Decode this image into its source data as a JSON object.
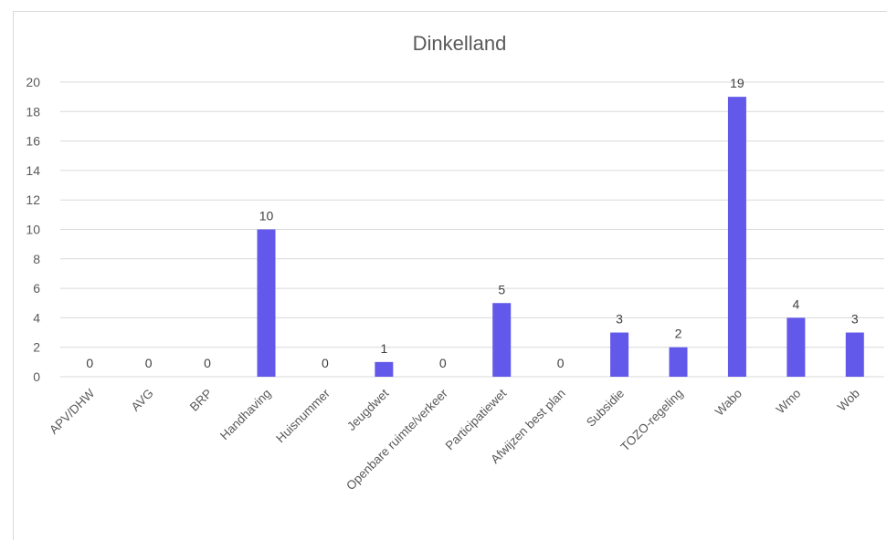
{
  "chart_data": {
    "type": "bar",
    "title": "Dinkelland",
    "categories": [
      "APV/DHW",
      "AVG",
      "BRP",
      "Handhaving",
      "Huisnummer",
      "Jeugdwet",
      "Openbare ruimte/verkeer",
      "Participatiewet",
      "Afwijzen best plan",
      "Subsidie",
      "TOZO-regeling",
      "Wabo",
      "Wmo",
      "Wob"
    ],
    "values": [
      0,
      0,
      0,
      10,
      0,
      1,
      0,
      5,
      0,
      3,
      2,
      19,
      4,
      3
    ],
    "data_labels": [
      "0",
      "0",
      "0",
      "10",
      "0",
      "1",
      "0",
      "5",
      "0",
      "3",
      "2",
      "19",
      "4",
      "3"
    ],
    "yticks": [
      "0",
      "2",
      "4",
      "6",
      "8",
      "10",
      "12",
      "14",
      "16",
      "18",
      "20"
    ],
    "ylim": [
      0,
      20
    ],
    "grid": true,
    "legend": "none",
    "bar_color": "#6258ea"
  }
}
